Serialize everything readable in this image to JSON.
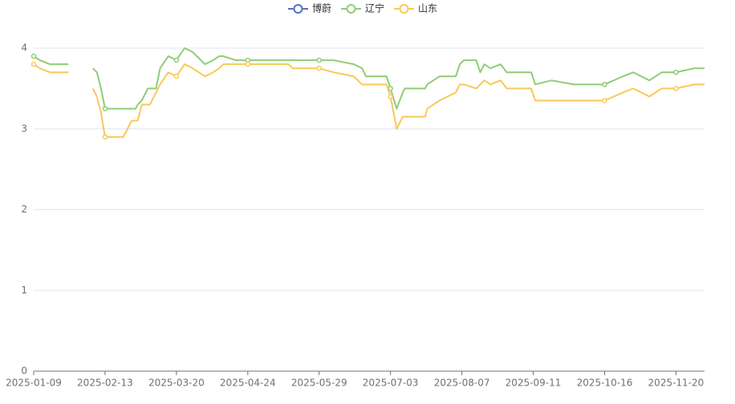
{
  "chart_data": {
    "type": "line",
    "x": [
      "2025-01-09",
      "2025-01-12",
      "2025-01-17",
      "2025-01-26",
      "2025-01-30",
      "2025-02-07",
      "2025-02-09",
      "2025-02-11",
      "2025-02-13",
      "2025-02-22",
      "2025-02-24",
      "2025-02-26",
      "2025-02-28",
      "2025-03-01",
      "2025-03-03",
      "2025-03-06",
      "2025-03-07",
      "2025-03-10",
      "2025-03-12",
      "2025-03-16",
      "2025-03-20",
      "2025-03-24",
      "2025-03-28",
      "2025-04-03",
      "2025-04-07",
      "2025-04-10",
      "2025-04-12",
      "2025-04-18",
      "2025-04-24",
      "2025-05-14",
      "2025-05-16",
      "2025-05-29",
      "2025-06-05",
      "2025-06-15",
      "2025-06-19",
      "2025-06-21",
      "2025-07-01",
      "2025-07-03",
      "2025-07-06",
      "2025-07-09",
      "2025-07-10",
      "2025-07-20",
      "2025-07-21",
      "2025-07-24",
      "2025-07-27",
      "2025-08-04",
      "2025-08-06",
      "2025-08-08",
      "2025-08-14",
      "2025-08-16",
      "2025-08-18",
      "2025-08-21",
      "2025-08-26",
      "2025-08-29",
      "2025-09-10",
      "2025-09-12",
      "2025-09-20",
      "2025-10-01",
      "2025-10-16",
      "2025-10-25",
      "2025-10-30",
      "2025-11-07",
      "2025-11-13",
      "2025-11-20",
      "2025-11-29",
      "2025-12-04"
    ],
    "series": [
      {
        "name": "博蔚",
        "color": "#5470c6",
        "values": [
          null,
          null,
          null,
          null,
          null,
          null,
          null,
          null,
          null,
          null,
          null,
          null,
          null,
          null,
          null,
          null,
          null,
          null,
          null,
          null,
          null,
          null,
          null,
          null,
          null,
          null,
          null,
          null,
          null,
          null,
          null,
          null,
          null,
          null,
          null,
          null,
          null,
          null,
          null,
          null,
          null,
          null,
          null,
          null,
          null,
          null,
          null,
          null,
          null,
          null,
          null,
          null,
          null,
          null,
          null,
          null,
          null,
          null,
          null,
          null,
          null,
          null,
          null,
          null,
          null,
          null
        ]
      },
      {
        "name": "辽宁",
        "color": "#91cc75",
        "values": [
          3.9,
          3.85,
          3.8,
          3.8,
          null,
          3.75,
          3.7,
          3.5,
          3.25,
          3.25,
          3.25,
          3.25,
          3.25,
          3.3,
          3.35,
          3.5,
          3.5,
          3.5,
          3.75,
          3.9,
          3.85,
          4.0,
          3.95,
          3.8,
          3.85,
          3.9,
          3.9,
          3.85,
          3.85,
          3.85,
          3.85,
          3.85,
          3.85,
          3.8,
          3.75,
          3.65,
          3.65,
          3.5,
          3.25,
          3.45,
          3.5,
          3.5,
          3.55,
          3.6,
          3.65,
          3.65,
          3.8,
          3.85,
          3.85,
          3.7,
          3.8,
          3.75,
          3.8,
          3.7,
          3.7,
          3.55,
          3.6,
          3.55,
          3.55,
          3.65,
          3.7,
          3.6,
          3.7,
          3.7,
          3.75,
          3.75
        ]
      },
      {
        "name": "山东",
        "color": "#fac858",
        "values": [
          3.8,
          3.75,
          3.7,
          3.7,
          null,
          3.5,
          3.4,
          3.2,
          2.9,
          2.9,
          3.0,
          3.1,
          3.1,
          3.1,
          3.3,
          3.3,
          3.3,
          3.45,
          3.55,
          3.7,
          3.65,
          3.8,
          3.75,
          3.65,
          3.7,
          3.75,
          3.8,
          3.8,
          3.8,
          3.8,
          3.75,
          3.75,
          3.7,
          3.65,
          3.55,
          3.55,
          3.55,
          3.4,
          3.0,
          3.15,
          3.15,
          3.15,
          3.25,
          3.3,
          3.35,
          3.45,
          3.55,
          3.55,
          3.5,
          3.55,
          3.6,
          3.55,
          3.6,
          3.5,
          3.5,
          3.35,
          3.35,
          3.35,
          3.35,
          3.45,
          3.5,
          3.4,
          3.5,
          3.5,
          3.55,
          3.55
        ]
      }
    ],
    "xlim": [
      "2025-01-09",
      "2025-12-04"
    ],
    "xticks": [
      "2025-01-09",
      "2025-02-13",
      "2025-03-20",
      "2025-04-24",
      "2025-05-29",
      "2025-07-03",
      "2025-08-07",
      "2025-09-11",
      "2025-10-16",
      "2025-11-20"
    ],
    "ylim": [
      0,
      4
    ],
    "yticks": [
      0,
      1,
      2,
      3,
      4
    ],
    "grid": true,
    "legend": "top"
  }
}
